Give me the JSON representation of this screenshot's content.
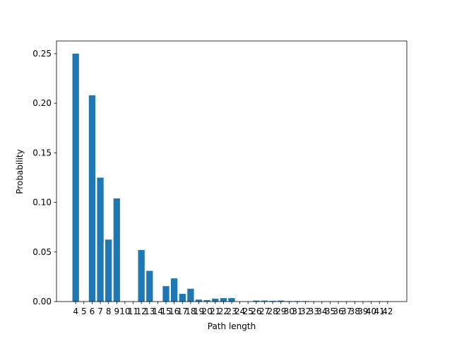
{
  "chart_data": {
    "type": "bar",
    "x_label": "Path length",
    "y_label": "Probability",
    "x": [
      4,
      5,
      6,
      7,
      8,
      9,
      10,
      11,
      12,
      13,
      14,
      15,
      16,
      17,
      18,
      19,
      20,
      21,
      22,
      23,
      24,
      25,
      26,
      27,
      28,
      29,
      30,
      31,
      32,
      33,
      34,
      35,
      36,
      37,
      38,
      39,
      40,
      41,
      42
    ],
    "values": [
      0.25,
      0,
      0.208,
      0.125,
      0.0625,
      0.104,
      0,
      0,
      0.052,
      0.031,
      0,
      0.0156,
      0.0234,
      0.0078,
      0.013,
      0.002,
      0.0015,
      0.003,
      0.0035,
      0.0035,
      0,
      0,
      0.001,
      0.001,
      0.0007,
      0.001,
      0.0005,
      0.0005,
      0.0005,
      0.0002,
      0.0001,
      0.0001,
      0.0001,
      0.0001,
      0.0001,
      0.0001,
      0.0001,
      0.0001,
      0.0001
    ],
    "color": "#1f77b4",
    "bar_width": 0.8,
    "xlim": [
      1.66,
      44.34
    ],
    "xticks": [
      4,
      5,
      6,
      7,
      8,
      9,
      10,
      11,
      12,
      13,
      14,
      15,
      16,
      17,
      18,
      19,
      20,
      21,
      22,
      23,
      24,
      25,
      26,
      27,
      28,
      29,
      30,
      31,
      32,
      33,
      34,
      35,
      36,
      37,
      38,
      39,
      40,
      41,
      42
    ],
    "ylim": [
      0,
      0.2628
    ],
    "yticks": [
      {
        "value": 0,
        "label": "0.00"
      },
      {
        "value": 0.05,
        "label": "0.05"
      },
      {
        "value": 0.1,
        "label": "0.10"
      },
      {
        "value": 0.15,
        "label": "0.15"
      },
      {
        "value": 0.2,
        "label": "0.20"
      },
      {
        "value": 0.25,
        "label": "0.25"
      }
    ],
    "grid": false
  }
}
